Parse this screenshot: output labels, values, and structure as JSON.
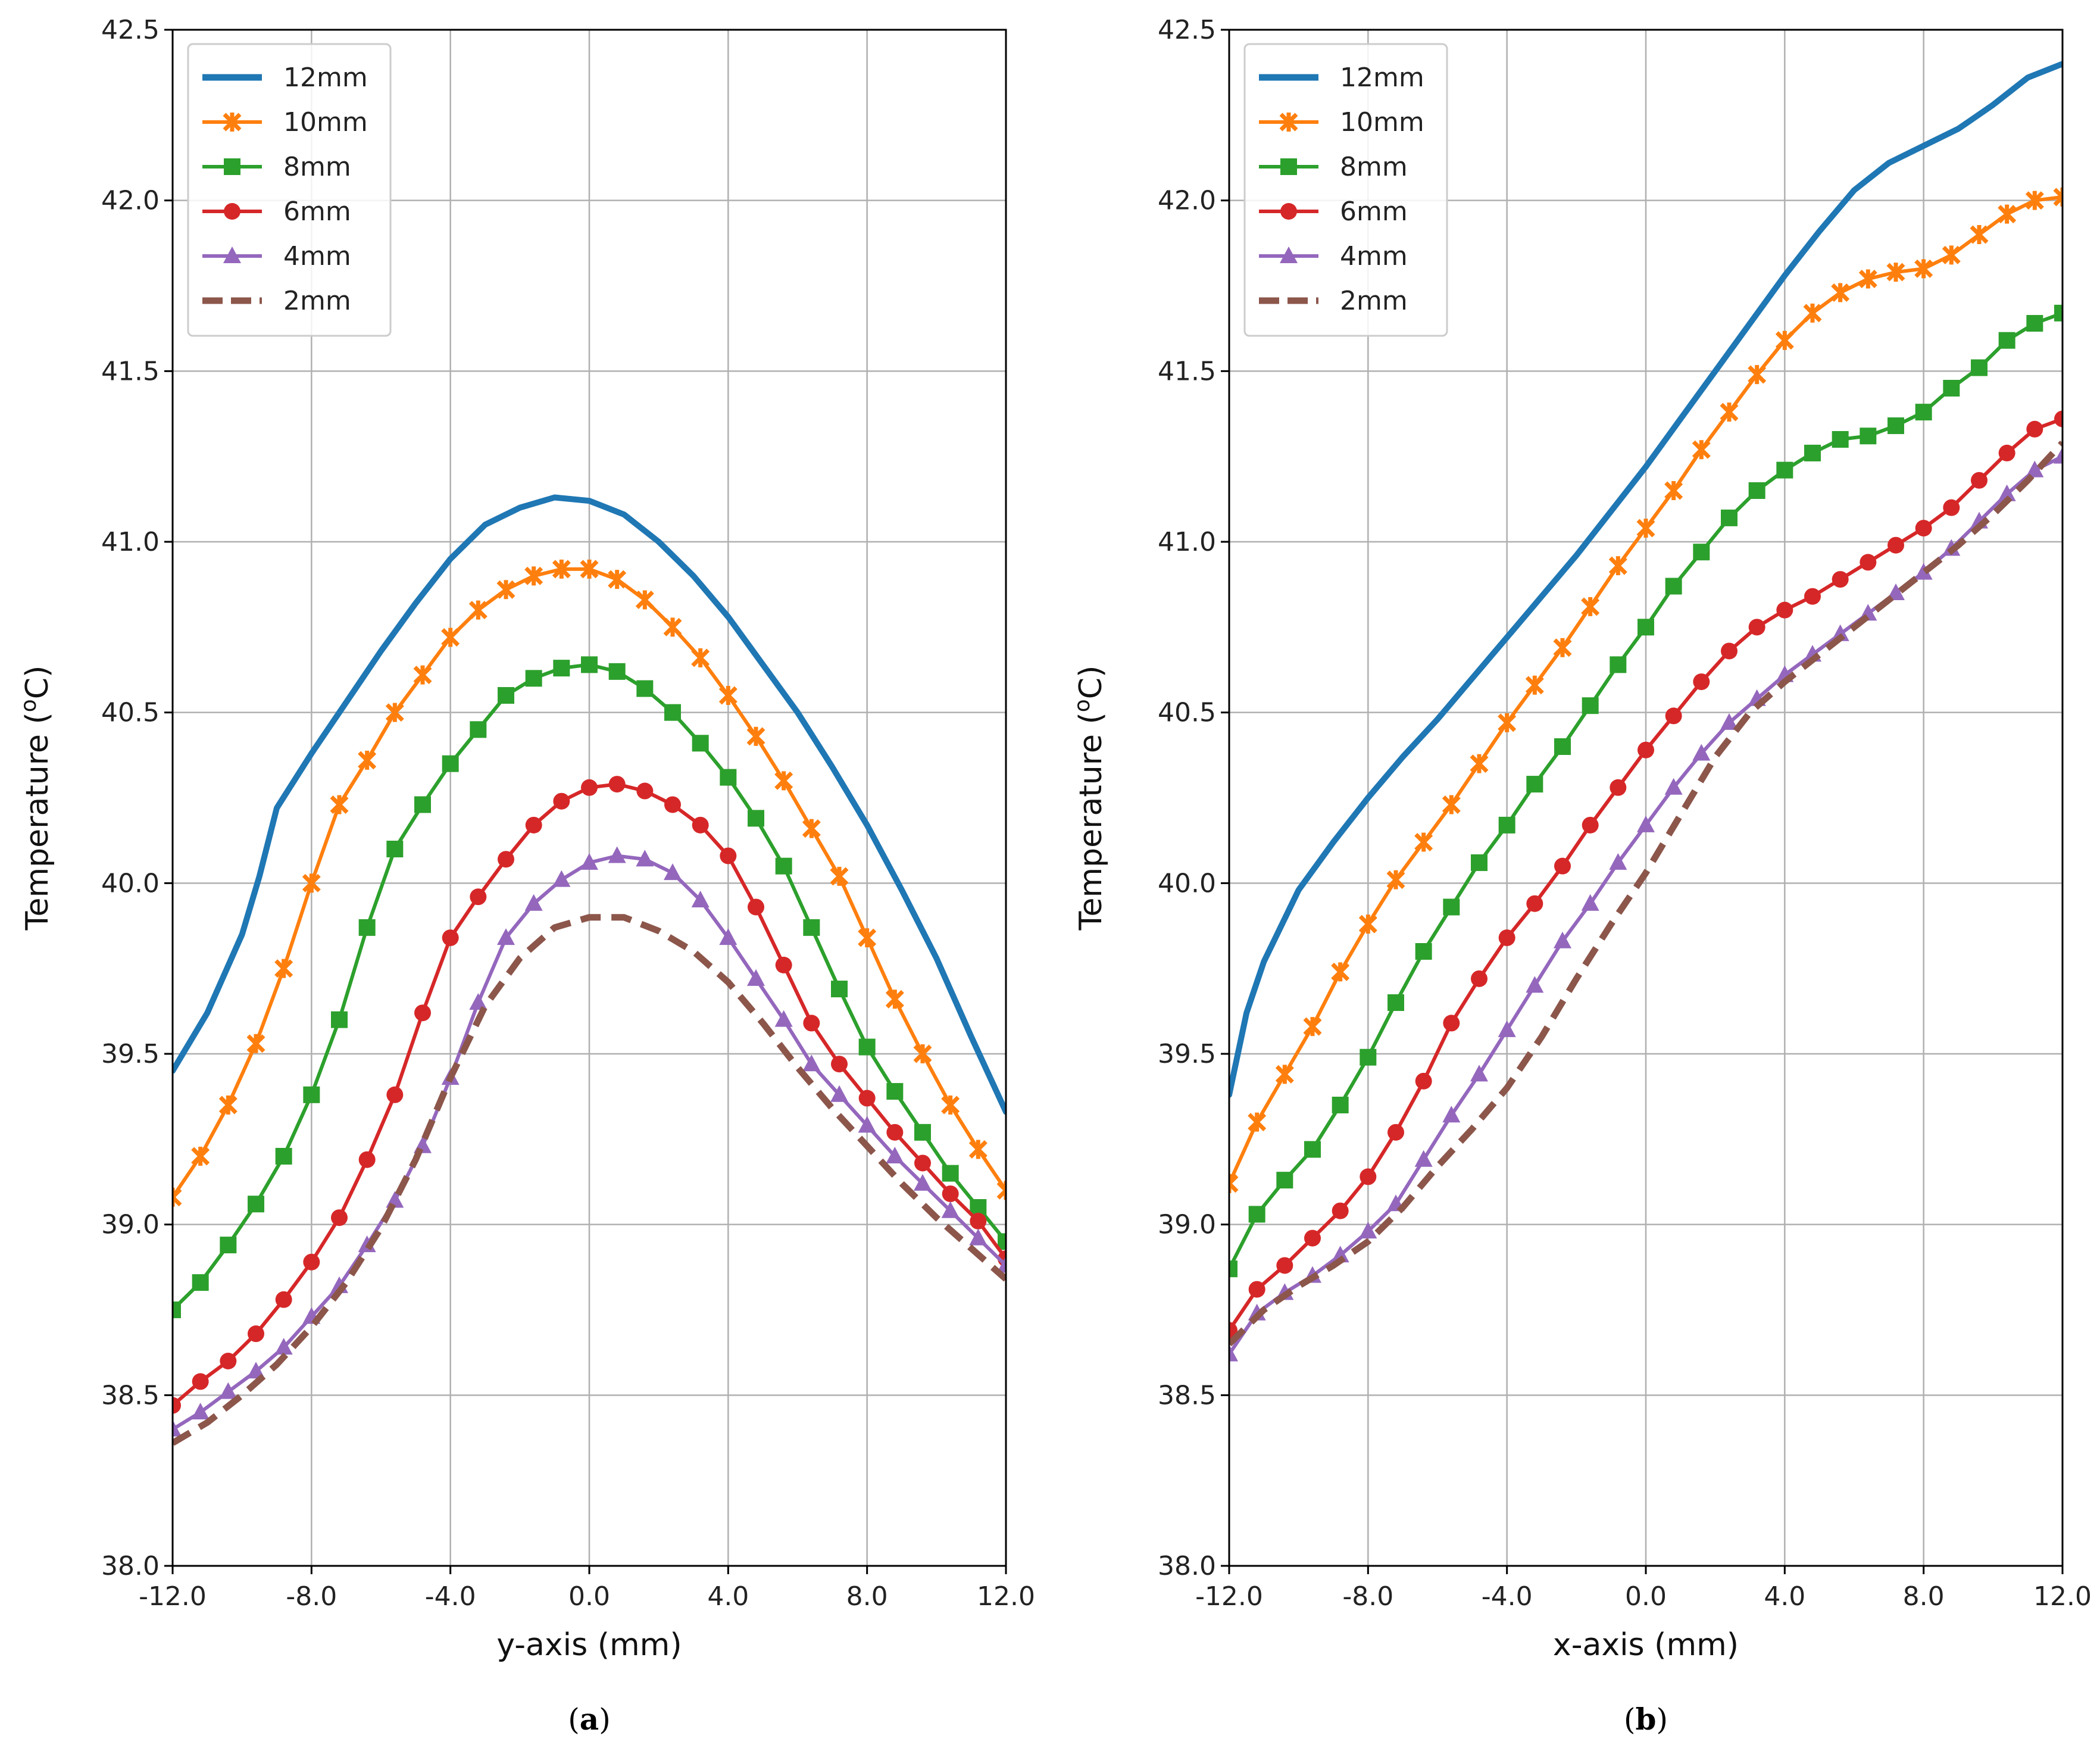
{
  "chart_data": [
    {
      "type": "line",
      "panel_label": "a",
      "xlabel": "y-axis (mm)",
      "ylabel": "Temperature (",
      "ylabel_sup": "o",
      "ylabel_unit": "C)",
      "xlim": [
        -12,
        12
      ],
      "ylim": [
        38.0,
        42.5
      ],
      "xticks": [
        "-12.0",
        "-8.0",
        "-4.0",
        "0.0",
        "4.0",
        "8.0",
        "12.0"
      ],
      "yticks": [
        "38.0",
        "38.5",
        "39.0",
        "39.5",
        "40.0",
        "40.5",
        "41.0",
        "41.5",
        "42.0",
        "42.5"
      ],
      "grid": true,
      "legend": "top-left",
      "series": [
        {
          "name": "12mm",
          "color": "#1f77b4",
          "marker": "none",
          "dash": "solid",
          "x": [
            -12,
            -11,
            -10,
            -9.5,
            -9,
            -8,
            -7,
            -6,
            -5,
            -4,
            -3,
            -2,
            -1,
            0,
            1,
            2,
            3,
            4,
            5,
            6,
            7,
            8,
            9,
            10,
            11,
            12
          ],
          "y": [
            39.45,
            39.62,
            39.85,
            40.02,
            40.22,
            40.38,
            40.53,
            40.68,
            40.82,
            40.95,
            41.05,
            41.1,
            41.13,
            41.12,
            41.08,
            41.0,
            40.9,
            40.78,
            40.64,
            40.5,
            40.34,
            40.17,
            39.98,
            39.78,
            39.55,
            39.33
          ]
        },
        {
          "name": "10mm",
          "color": "#ff7f0e",
          "marker": "x",
          "dash": "solid",
          "x": [
            -12,
            -11.2,
            -10.4,
            -9.6,
            -8.8,
            -8,
            -7.2,
            -6.4,
            -5.6,
            -4.8,
            -4,
            -3.2,
            -2.4,
            -1.6,
            -0.8,
            0,
            0.8,
            1.6,
            2.4,
            3.2,
            4,
            4.8,
            5.6,
            6.4,
            7.2,
            8,
            8.8,
            9.6,
            10.4,
            11.2,
            12
          ],
          "y": [
            39.08,
            39.2,
            39.35,
            39.53,
            39.75,
            40.0,
            40.23,
            40.36,
            40.5,
            40.61,
            40.72,
            40.8,
            40.86,
            40.9,
            40.92,
            40.92,
            40.89,
            40.83,
            40.75,
            40.66,
            40.55,
            40.43,
            40.3,
            40.16,
            40.02,
            39.84,
            39.66,
            39.5,
            39.35,
            39.22,
            39.1
          ]
        },
        {
          "name": "8mm",
          "color": "#2ca02c",
          "marker": "square",
          "dash": "solid",
          "x": [
            -12,
            -11.2,
            -10.4,
            -9.6,
            -8.8,
            -8,
            -7.2,
            -6.4,
            -5.6,
            -4.8,
            -4,
            -3.2,
            -2.4,
            -1.6,
            -0.8,
            0,
            0.8,
            1.6,
            2.4,
            3.2,
            4,
            4.8,
            5.6,
            6.4,
            7.2,
            8,
            8.8,
            9.6,
            10.4,
            11.2,
            12
          ],
          "y": [
            38.75,
            38.83,
            38.94,
            39.06,
            39.2,
            39.38,
            39.6,
            39.87,
            40.1,
            40.23,
            40.35,
            40.45,
            40.55,
            40.6,
            40.63,
            40.64,
            40.62,
            40.57,
            40.5,
            40.41,
            40.31,
            40.19,
            40.05,
            39.87,
            39.69,
            39.52,
            39.39,
            39.27,
            39.15,
            39.05,
            38.95
          ]
        },
        {
          "name": "6mm",
          "color": "#d62728",
          "marker": "circle",
          "dash": "solid",
          "x": [
            -12,
            -11.2,
            -10.4,
            -9.6,
            -8.8,
            -8,
            -7.2,
            -6.4,
            -5.6,
            -4.8,
            -4,
            -3.2,
            -2.4,
            -1.6,
            -0.8,
            0,
            0.8,
            1.6,
            2.4,
            3.2,
            4,
            4.8,
            5.6,
            6.4,
            7.2,
            8,
            8.8,
            9.6,
            10.4,
            11.2,
            12
          ],
          "y": [
            38.47,
            38.54,
            38.6,
            38.68,
            38.78,
            38.89,
            39.02,
            39.19,
            39.38,
            39.62,
            39.84,
            39.96,
            40.07,
            40.17,
            40.24,
            40.28,
            40.29,
            40.27,
            40.23,
            40.17,
            40.08,
            39.93,
            39.76,
            39.59,
            39.47,
            39.37,
            39.27,
            39.18,
            39.09,
            39.01,
            38.9
          ]
        },
        {
          "name": "4mm",
          "color": "#9467bd",
          "marker": "triangle",
          "dash": "solid",
          "x": [
            -12,
            -11.2,
            -10.4,
            -9.6,
            -8.8,
            -8,
            -7.2,
            -6.4,
            -5.6,
            -4.8,
            -4,
            -3.2,
            -2.4,
            -1.6,
            -0.8,
            0,
            0.8,
            1.6,
            2.4,
            3.2,
            4,
            4.8,
            5.6,
            6.4,
            7.2,
            8,
            8.8,
            9.6,
            10.4,
            11.2,
            12
          ],
          "y": [
            38.4,
            38.45,
            38.51,
            38.57,
            38.64,
            38.73,
            38.82,
            38.94,
            39.07,
            39.23,
            39.43,
            39.65,
            39.84,
            39.94,
            40.01,
            40.06,
            40.08,
            40.07,
            40.03,
            39.95,
            39.84,
            39.72,
            39.6,
            39.47,
            39.38,
            39.29,
            39.2,
            39.12,
            39.04,
            38.96,
            38.88
          ]
        },
        {
          "name": "2mm",
          "color": "#8c564b",
          "marker": "none",
          "dash": "dashed",
          "x": [
            -12,
            -11,
            -10,
            -9,
            -8,
            -7,
            -6,
            -5,
            -4,
            -3,
            -2,
            -1,
            0,
            1,
            2,
            3,
            4,
            5,
            6,
            7,
            8,
            9,
            10,
            11,
            12
          ],
          "y": [
            38.36,
            38.42,
            38.5,
            38.59,
            38.7,
            38.83,
            38.99,
            39.19,
            39.43,
            39.64,
            39.78,
            39.87,
            39.9,
            39.9,
            39.86,
            39.8,
            39.71,
            39.59,
            39.46,
            39.34,
            39.23,
            39.12,
            39.02,
            38.93,
            38.84
          ]
        }
      ]
    },
    {
      "type": "line",
      "panel_label": "b",
      "xlabel": "x-axis (mm)",
      "ylabel": "Temperature (",
      "ylabel_sup": "o",
      "ylabel_unit": "C)",
      "xlim": [
        -12,
        12
      ],
      "ylim": [
        38.0,
        42.5
      ],
      "xticks": [
        "-12.0",
        "-8.0",
        "-4.0",
        "0.0",
        "4.0",
        "8.0",
        "12.0"
      ],
      "yticks": [
        "38.0",
        "38.5",
        "39.0",
        "39.5",
        "40.0",
        "40.5",
        "41.0",
        "41.5",
        "42.0",
        "42.5"
      ],
      "grid": true,
      "legend": "top-left",
      "series": [
        {
          "name": "12mm",
          "color": "#1f77b4",
          "marker": "none",
          "dash": "solid",
          "x": [
            -12,
            -11.5,
            -11,
            -10,
            -9,
            -8,
            -7,
            -6,
            -5,
            -4,
            -3,
            -2,
            -1,
            0,
            1,
            2,
            3,
            4,
            5,
            6,
            7,
            8,
            9,
            10,
            11,
            12
          ],
          "y": [
            39.38,
            39.62,
            39.77,
            39.98,
            40.12,
            40.25,
            40.37,
            40.48,
            40.6,
            40.72,
            40.84,
            40.96,
            41.09,
            41.22,
            41.36,
            41.5,
            41.64,
            41.78,
            41.91,
            42.03,
            42.11,
            42.16,
            42.21,
            42.28,
            42.36,
            42.4
          ]
        },
        {
          "name": "10mm",
          "color": "#ff7f0e",
          "marker": "x",
          "dash": "solid",
          "x": [
            -12,
            -11.2,
            -10.4,
            -9.6,
            -8.8,
            -8,
            -7.2,
            -6.4,
            -5.6,
            -4.8,
            -4,
            -3.2,
            -2.4,
            -1.6,
            -0.8,
            0,
            0.8,
            1.6,
            2.4,
            3.2,
            4,
            4.8,
            5.6,
            6.4,
            7.2,
            8,
            8.8,
            9.6,
            10.4,
            11.2,
            12
          ],
          "y": [
            39.12,
            39.3,
            39.44,
            39.58,
            39.74,
            39.88,
            40.01,
            40.12,
            40.23,
            40.35,
            40.47,
            40.58,
            40.69,
            40.81,
            40.93,
            41.04,
            41.15,
            41.27,
            41.38,
            41.49,
            41.59,
            41.67,
            41.73,
            41.77,
            41.79,
            41.8,
            41.84,
            41.9,
            41.96,
            42.0,
            42.01
          ]
        },
        {
          "name": "8mm",
          "color": "#2ca02c",
          "marker": "square",
          "dash": "solid",
          "x": [
            -12,
            -11.2,
            -10.4,
            -9.6,
            -8.8,
            -8,
            -7.2,
            -6.4,
            -5.6,
            -4.8,
            -4,
            -3.2,
            -2.4,
            -1.6,
            -0.8,
            0,
            0.8,
            1.6,
            2.4,
            3.2,
            4,
            4.8,
            5.6,
            6.4,
            7.2,
            8,
            8.8,
            9.6,
            10.4,
            11.2,
            12
          ],
          "y": [
            38.87,
            39.03,
            39.13,
            39.22,
            39.35,
            39.49,
            39.65,
            39.8,
            39.93,
            40.06,
            40.17,
            40.29,
            40.4,
            40.52,
            40.64,
            40.75,
            40.87,
            40.97,
            41.07,
            41.15,
            41.21,
            41.26,
            41.3,
            41.31,
            41.34,
            41.38,
            41.45,
            41.51,
            41.59,
            41.64,
            41.67
          ]
        },
        {
          "name": "6mm",
          "color": "#d62728",
          "marker": "circle",
          "dash": "solid",
          "x": [
            -12,
            -11.2,
            -10.4,
            -9.6,
            -8.8,
            -8,
            -7.2,
            -6.4,
            -5.6,
            -4.8,
            -4,
            -3.2,
            -2.4,
            -1.6,
            -0.8,
            0,
            0.8,
            1.6,
            2.4,
            3.2,
            4,
            4.8,
            5.6,
            6.4,
            7.2,
            8,
            8.8,
            9.6,
            10.4,
            11.2,
            12
          ],
          "y": [
            38.69,
            38.81,
            38.88,
            38.96,
            39.04,
            39.14,
            39.27,
            39.42,
            39.59,
            39.72,
            39.84,
            39.94,
            40.05,
            40.17,
            40.28,
            40.39,
            40.49,
            40.59,
            40.68,
            40.75,
            40.8,
            40.84,
            40.89,
            40.94,
            40.99,
            41.04,
            41.1,
            41.18,
            41.26,
            41.33,
            41.36
          ]
        },
        {
          "name": "4mm",
          "color": "#9467bd",
          "marker": "triangle",
          "dash": "solid",
          "x": [
            -12,
            -11.2,
            -10.4,
            -9.6,
            -8.8,
            -8,
            -7.2,
            -6.4,
            -5.6,
            -4.8,
            -4,
            -3.2,
            -2.4,
            -1.6,
            -0.8,
            0,
            0.8,
            1.6,
            2.4,
            3.2,
            4,
            4.8,
            5.6,
            6.4,
            7.2,
            8,
            8.8,
            9.6,
            10.4,
            11.2,
            12
          ],
          "y": [
            38.62,
            38.74,
            38.8,
            38.85,
            38.91,
            38.98,
            39.06,
            39.19,
            39.32,
            39.44,
            39.57,
            39.7,
            39.83,
            39.94,
            40.06,
            40.17,
            40.28,
            40.38,
            40.47,
            40.54,
            40.61,
            40.67,
            40.73,
            40.79,
            40.85,
            40.91,
            40.98,
            41.06,
            41.14,
            41.21,
            41.25
          ]
        },
        {
          "name": "2mm",
          "color": "#8c564b",
          "marker": "none",
          "dash": "dashed",
          "x": [
            -12,
            -11,
            -10,
            -9,
            -8,
            -7,
            -6,
            -5,
            -4,
            -3,
            -2,
            -1,
            0,
            1,
            2,
            3,
            4,
            5,
            6,
            7,
            8,
            9,
            10,
            11,
            12
          ],
          "y": [
            38.65,
            38.75,
            38.82,
            38.88,
            38.95,
            39.05,
            39.17,
            39.28,
            39.4,
            39.55,
            39.72,
            39.88,
            40.03,
            40.2,
            40.37,
            40.5,
            40.59,
            40.67,
            40.75,
            40.83,
            40.91,
            40.99,
            41.08,
            41.18,
            41.29
          ]
        }
      ]
    }
  ]
}
